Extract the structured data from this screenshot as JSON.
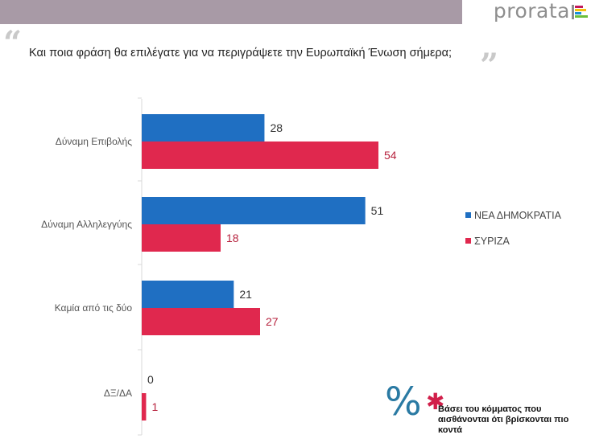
{
  "brand": {
    "name": "prorata"
  },
  "question": "Και ποια φράση θα επιλέγατε για να περιγράψετε την Ευρωπαϊκή Ένωση σήμερα;",
  "legend": [
    {
      "label": "ΝΕΑ ΔΗΜΟΚΡΑΤΙΑ",
      "color": "#1f6fc2"
    },
    {
      "label": "ΣΥΡΙΖΑ",
      "color": "#e0284e"
    }
  ],
  "footnote": "Βάσει του κόμματος που αισθάνονται ότι βρίσκονται πιο κοντά",
  "chart_data": {
    "type": "bar",
    "orientation": "horizontal",
    "title": "Και ποια φράση θα επιλέγατε για να περιγράψετε την Ευρωπαϊκή Ένωση σήμερα;",
    "categories": [
      "Δύναμη Επιβολής",
      "Δύναμη Αλληλεγγύης",
      "Καμία από τις δύο",
      "ΔΞ/ΔΑ"
    ],
    "series": [
      {
        "name": "ΝΕΑ ΔΗΜΟΚΡΑΤΙΑ",
        "values": [
          28,
          51,
          21,
          0
        ],
        "color": "#1f6fc2"
      },
      {
        "name": "ΣΥΡΙΖΑ",
        "values": [
          54,
          18,
          27,
          1
        ],
        "color": "#e0284e"
      }
    ],
    "xlim": [
      0,
      60
    ],
    "xlabel": "",
    "ylabel": "",
    "legend_position": "right",
    "grid": false,
    "unit": "%"
  }
}
